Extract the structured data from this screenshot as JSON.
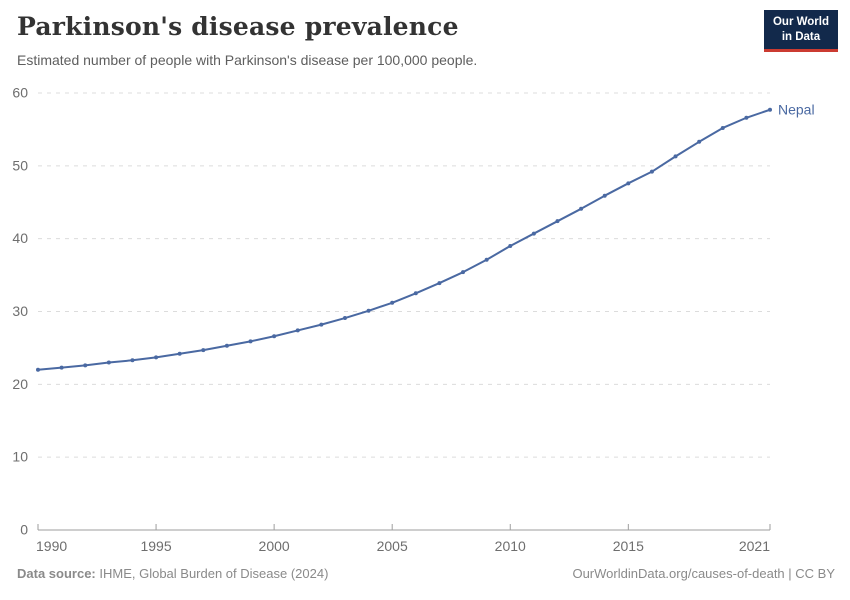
{
  "header": {
    "title": "Parkinson's disease prevalence",
    "subtitle": "Estimated number of people with Parkinson's disease per 100,000 people.",
    "logo": {
      "line1": "Our World",
      "line2": "in Data"
    }
  },
  "footer": {
    "source_label": "Data source:",
    "source_text": " IHME, Global Burden of Disease (2024)",
    "attribution": "OurWorldinData.org/causes-of-death | CC BY"
  },
  "colors": {
    "line": "#4a69a2",
    "entity_label": "#4a69a2",
    "grid": "#dcdcdc",
    "axis": "#9e9e9e",
    "tick_label": "#6e6e6e",
    "title": "#333333",
    "subtitle": "#5e5e5e",
    "footer_text": "#8a8a8a",
    "logo_bg": "#12294b",
    "logo_red": "#cb3b31"
  },
  "chart_data": {
    "type": "line",
    "title": "Parkinson's disease prevalence",
    "subtitle": "Estimated number of people with Parkinson's disease per 100,000 people.",
    "x": [
      1990,
      1991,
      1992,
      1993,
      1994,
      1995,
      1996,
      1997,
      1998,
      1999,
      2000,
      2001,
      2002,
      2003,
      2004,
      2005,
      2006,
      2007,
      2008,
      2009,
      2010,
      2011,
      2012,
      2013,
      2014,
      2015,
      2016,
      2017,
      2018,
      2019,
      2020,
      2021
    ],
    "series": [
      {
        "name": "Nepal",
        "color": "#4a69a2",
        "values": [
          22.0,
          22.3,
          22.6,
          23.0,
          23.3,
          23.7,
          24.2,
          24.7,
          25.3,
          25.9,
          26.6,
          27.4,
          28.2,
          29.1,
          30.1,
          31.2,
          32.5,
          33.9,
          35.4,
          37.1,
          39.0,
          40.7,
          42.4,
          44.1,
          45.9,
          47.6,
          49.2,
          51.3,
          53.3,
          55.2,
          56.6,
          57.7
        ]
      }
    ],
    "xlabel": "",
    "ylabel": "",
    "xlim": [
      1990,
      2021
    ],
    "ylim": [
      0,
      60
    ],
    "x_ticks": [
      1990,
      1995,
      2000,
      2005,
      2010,
      2015,
      2021
    ],
    "y_ticks": [
      0,
      10,
      20,
      30,
      40,
      50,
      60
    ],
    "grid": "horizontal-dashed",
    "legend_position": "end-of-line-label",
    "marker": "dot"
  }
}
